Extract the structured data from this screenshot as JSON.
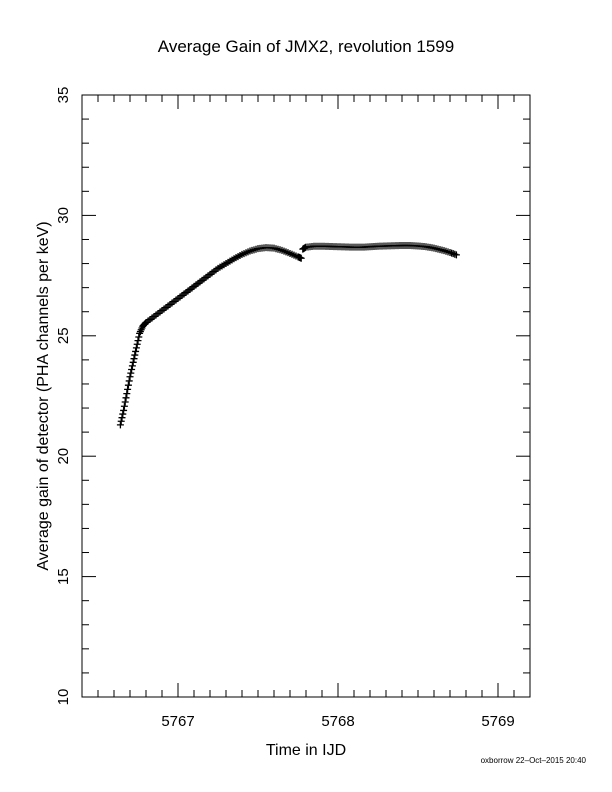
{
  "chart_data": {
    "type": "scatter",
    "title": "Average Gain of JMX2, revolution 1599",
    "xlabel": "Time in IJD",
    "ylabel": "Average gain of detector (PHA channels per keV)",
    "xlim": [
      5766.4,
      5769.2
    ],
    "ylim": [
      10,
      35
    ],
    "x_ticks": [
      5767,
      5768,
      5769
    ],
    "y_ticks": [
      10,
      15,
      20,
      25,
      30,
      35
    ],
    "marker": "plus",
    "grid": false,
    "series": [
      {
        "segment": 1,
        "points": [
          [
            5766.64,
            21.3
          ],
          [
            5766.66,
            21.9
          ],
          [
            5766.68,
            22.6
          ],
          [
            5766.7,
            23.3
          ],
          [
            5766.72,
            23.9
          ],
          [
            5766.74,
            24.5
          ],
          [
            5766.76,
            25.1
          ],
          [
            5766.78,
            25.4
          ],
          [
            5766.8,
            25.55
          ],
          [
            5766.85,
            25.8
          ],
          [
            5766.9,
            26.05
          ],
          [
            5766.95,
            26.3
          ],
          [
            5767.0,
            26.55
          ],
          [
            5767.05,
            26.8
          ],
          [
            5767.1,
            27.05
          ],
          [
            5767.15,
            27.3
          ],
          [
            5767.2,
            27.55
          ],
          [
            5767.25,
            27.8
          ],
          [
            5767.3,
            28.0
          ],
          [
            5767.35,
            28.2
          ],
          [
            5767.4,
            28.38
          ],
          [
            5767.45,
            28.52
          ],
          [
            5767.5,
            28.62
          ],
          [
            5767.55,
            28.66
          ],
          [
            5767.6,
            28.64
          ],
          [
            5767.65,
            28.55
          ],
          [
            5767.7,
            28.42
          ],
          [
            5767.75,
            28.28
          ],
          [
            5767.77,
            28.22
          ]
        ]
      },
      {
        "segment": 2,
        "points": [
          [
            5767.78,
            28.6
          ],
          [
            5767.8,
            28.68
          ],
          [
            5767.85,
            28.72
          ],
          [
            5767.9,
            28.72
          ],
          [
            5767.95,
            28.71
          ],
          [
            5768.0,
            28.7
          ],
          [
            5768.05,
            28.69
          ],
          [
            5768.1,
            28.68
          ],
          [
            5768.15,
            28.68
          ],
          [
            5768.2,
            28.7
          ],
          [
            5768.25,
            28.72
          ],
          [
            5768.3,
            28.73
          ],
          [
            5768.35,
            28.74
          ],
          [
            5768.4,
            28.75
          ],
          [
            5768.45,
            28.75
          ],
          [
            5768.5,
            28.73
          ],
          [
            5768.55,
            28.7
          ],
          [
            5768.6,
            28.64
          ],
          [
            5768.65,
            28.56
          ],
          [
            5768.7,
            28.46
          ],
          [
            5768.74,
            28.36
          ]
        ]
      }
    ]
  },
  "footer": "oxborrow 22–Oct–2015 20:40"
}
